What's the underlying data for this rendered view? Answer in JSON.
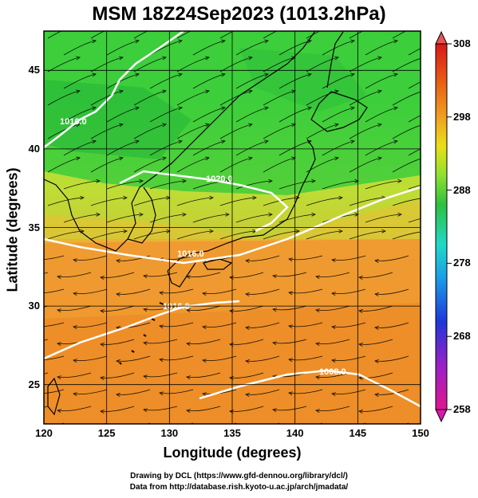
{
  "title": "MSM 18Z24Sep2023 (1013.2hPa)",
  "axes": {
    "xlabel": "Longitude (degrees)",
    "ylabel": "Latitude  (degrees)",
    "x_ticks": [
      "120",
      "125",
      "130",
      "135",
      "140",
      "145",
      "150"
    ],
    "y_ticks": [
      "25",
      "30",
      "35",
      "40",
      "45"
    ],
    "x_range": [
      120,
      150
    ],
    "y_range": [
      22.5,
      47.5
    ]
  },
  "colorbar": {
    "ticks": [
      "308",
      "298",
      "288",
      "278",
      "268",
      "258"
    ],
    "range": [
      258,
      308
    ],
    "colors": [
      "#e0168e",
      "#9b20c8",
      "#2036d8",
      "#1a9ee8",
      "#22d8c8",
      "#2cc040",
      "#8ee030",
      "#e8e018",
      "#f0a020",
      "#e85a14",
      "#d81818"
    ]
  },
  "contours": {
    "labels": [
      "1016.0",
      "1020.0",
      "1016.0",
      "1016.0",
      "1008.0"
    ]
  },
  "credits": {
    "line1": "Drawing by DCL (https://www.gfd-dennou.org/library/dcl/)",
    "line2": "Data from http://database.rish.kyoto-u.ac.jp/arch/jmadata/"
  }
}
